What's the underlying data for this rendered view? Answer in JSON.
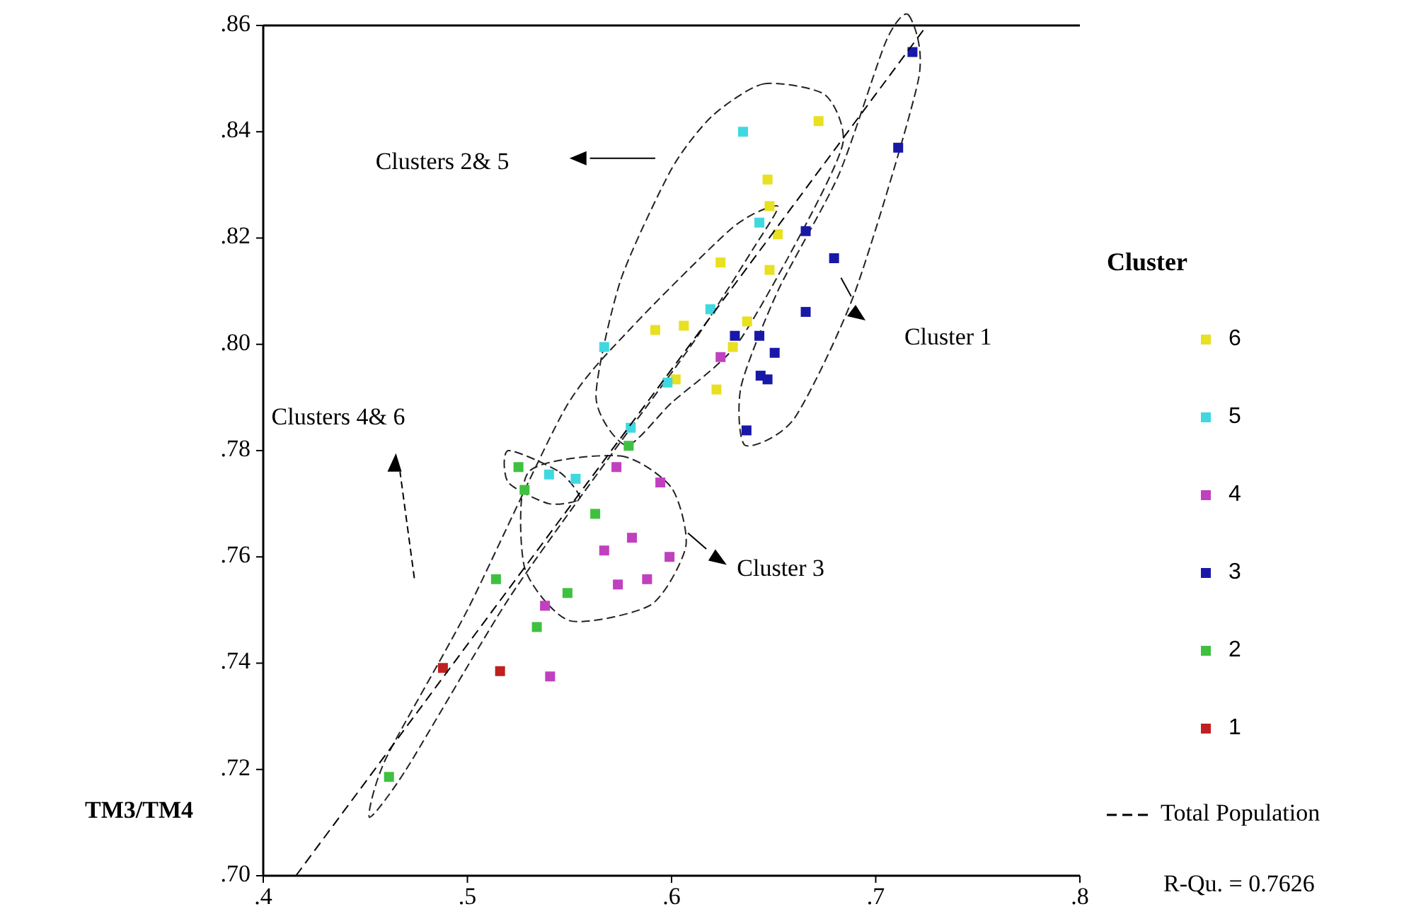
{
  "chart_data": {
    "type": "scatter",
    "ylabel": "TM3/TM4",
    "legend_title": "Cluster",
    "legend": "right",
    "marker": "square",
    "xlim": [
      0.4,
      0.8
    ],
    "xticks": [
      {
        "value": 0.4,
        "label": ".4"
      },
      {
        "value": 0.5,
        "label": ".5"
      },
      {
        "value": 0.6,
        "label": ".6"
      },
      {
        "value": 0.7,
        "label": ".7"
      },
      {
        "value": 0.8,
        "label": ".8"
      }
    ],
    "ylim": [
      0.7,
      0.86
    ],
    "yticks": [
      {
        "value": 0.7,
        "label": ".70"
      },
      {
        "value": 0.72,
        "label": ".72"
      },
      {
        "value": 0.74,
        "label": ".74"
      },
      {
        "value": 0.76,
        "label": ".76"
      },
      {
        "value": 0.78,
        "label": ".78"
      },
      {
        "value": 0.8,
        "label": ".80"
      },
      {
        "value": 0.82,
        "label": ".82"
      },
      {
        "value": 0.84,
        "label": ".84"
      },
      {
        "value": 0.86,
        "label": ".86"
      }
    ],
    "annotations": [
      "Clusters 2& 5",
      "Cluster 1",
      "Clusters 4& 6",
      "Cluster 3",
      "R-Qu. = 0.7626"
    ],
    "series": [
      {
        "name": "6",
        "color": "#e8e020",
        "x": [
          0.592,
          0.652,
          0.624,
          0.648,
          0.606,
          0.63,
          0.622,
          0.602,
          0.637,
          0.672,
          0.647,
          0.648
        ],
        "values": [
          0.8027,
          0.8207,
          0.8154,
          0.814,
          0.8035,
          0.7995,
          0.7915,
          0.7934,
          0.8043,
          0.842,
          0.831,
          0.826
        ]
      },
      {
        "name": "5",
        "color": "#40d8e0",
        "x": [
          0.567,
          0.598,
          0.54,
          0.553,
          0.58,
          0.643,
          0.619,
          0.635
        ],
        "values": [
          0.7995,
          0.7928,
          0.7755,
          0.7747,
          0.7843,
          0.8229,
          0.8066,
          0.84
        ]
      },
      {
        "name": "4",
        "color": "#c040c0",
        "x": [
          0.573,
          0.5945,
          0.5806,
          0.567,
          0.599,
          0.5737,
          0.588,
          0.538,
          0.5405,
          0.624
        ],
        "values": [
          0.7769,
          0.774,
          0.7636,
          0.7612,
          0.76,
          0.7548,
          0.7558,
          0.7508,
          0.7375,
          0.7976
        ]
      },
      {
        "name": "3",
        "color": "#1818a8",
        "x": [
          0.6657,
          0.6796,
          0.6657,
          0.631,
          0.643,
          0.6505,
          0.6436,
          0.647,
          0.6367,
          0.711,
          0.718
        ],
        "values": [
          0.8213,
          0.8162,
          0.8061,
          0.8016,
          0.8016,
          0.7984,
          0.7941,
          0.7934,
          0.7838,
          0.837,
          0.855
        ]
      },
      {
        "name": "2",
        "color": "#40c040",
        "x": [
          0.514,
          0.549,
          0.534,
          0.4616,
          0.525,
          0.528,
          0.5626,
          0.579
        ],
        "values": [
          0.7558,
          0.7532,
          0.7468,
          0.7186,
          0.7769,
          0.7726,
          0.7681,
          0.7809
        ]
      },
      {
        "name": "1",
        "color": "#c02020",
        "x": [
          0.488,
          0.516
        ],
        "values": [
          0.7391,
          0.7385
        ]
      },
      {
        "name": "Total Population",
        "type": "line",
        "color": "#000000",
        "line_style": "dashed",
        "marker": "none",
        "x": [
          0.416,
          0.725
        ],
        "values": [
          0.7,
          0.86
        ]
      }
    ]
  }
}
